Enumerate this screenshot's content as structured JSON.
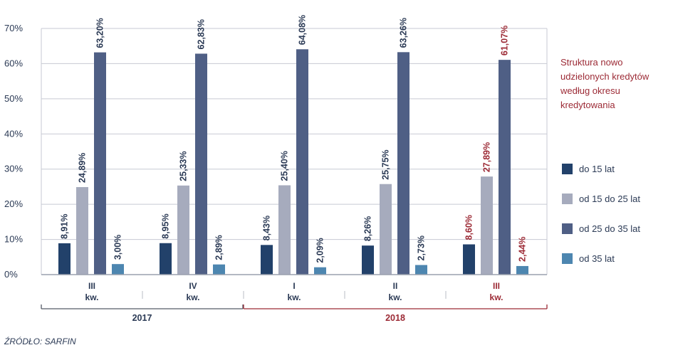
{
  "chart_data": {
    "type": "bar",
    "title_lines": [
      "Struktura nowo",
      "udzielonych kredytów",
      "według okresu",
      "kredytowania"
    ],
    "ylim": [
      0,
      70
    ],
    "yticks": [
      "0%",
      "10%",
      "20%",
      "30%",
      "40%",
      "50%",
      "60%",
      "70%"
    ],
    "grid": true,
    "legend_position": "right",
    "categories": [
      {
        "line1": "III",
        "line2": "kw."
      },
      {
        "line1": "IV",
        "line2": "kw."
      },
      {
        "line1": "I",
        "line2": "kw."
      },
      {
        "line1": "II",
        "line2": "kw."
      },
      {
        "line1": "III",
        "line2": "kw."
      }
    ],
    "years": [
      {
        "label": "2017",
        "from": 0,
        "to": 1
      },
      {
        "label": "2018",
        "from": 2,
        "to": 4
      }
    ],
    "series": [
      {
        "name": "do 15 lat",
        "color": "#22416a",
        "values": [
          8.91,
          8.95,
          8.43,
          8.26,
          8.6
        ],
        "labels": [
          "8,91%",
          "8,95%",
          "8,43%",
          "8,26%",
          "8,60%"
        ]
      },
      {
        "name": "od 15 do 25 lat",
        "color": "#a6abbd",
        "values": [
          24.89,
          25.33,
          25.4,
          25.75,
          27.89
        ],
        "labels": [
          "24,89%",
          "25,33%",
          "25,40%",
          "25,75%",
          "27,89%"
        ]
      },
      {
        "name": "od 25 do 35 lat",
        "color": "#4f5f85",
        "values": [
          63.2,
          62.83,
          64.08,
          63.26,
          61.07
        ],
        "labels": [
          "63,20%",
          "62,83%",
          "64,08%",
          "63,26%",
          "61,07%"
        ]
      },
      {
        "name": "od 35 lat",
        "color": "#4d86b0",
        "values": [
          3.0,
          2.89,
          2.09,
          2.73,
          2.44
        ],
        "labels": [
          "3,00%",
          "2,89%",
          "2,09%",
          "2,73%",
          "2,44%"
        ]
      }
    ],
    "highlight_category": 4,
    "colors": {
      "text": "#2b3a55",
      "accent": "#9c2a35",
      "grid": "#c7cad3",
      "year_2017_line": "#555a66"
    },
    "source": "ŹRÓDŁO: SARFIN"
  }
}
